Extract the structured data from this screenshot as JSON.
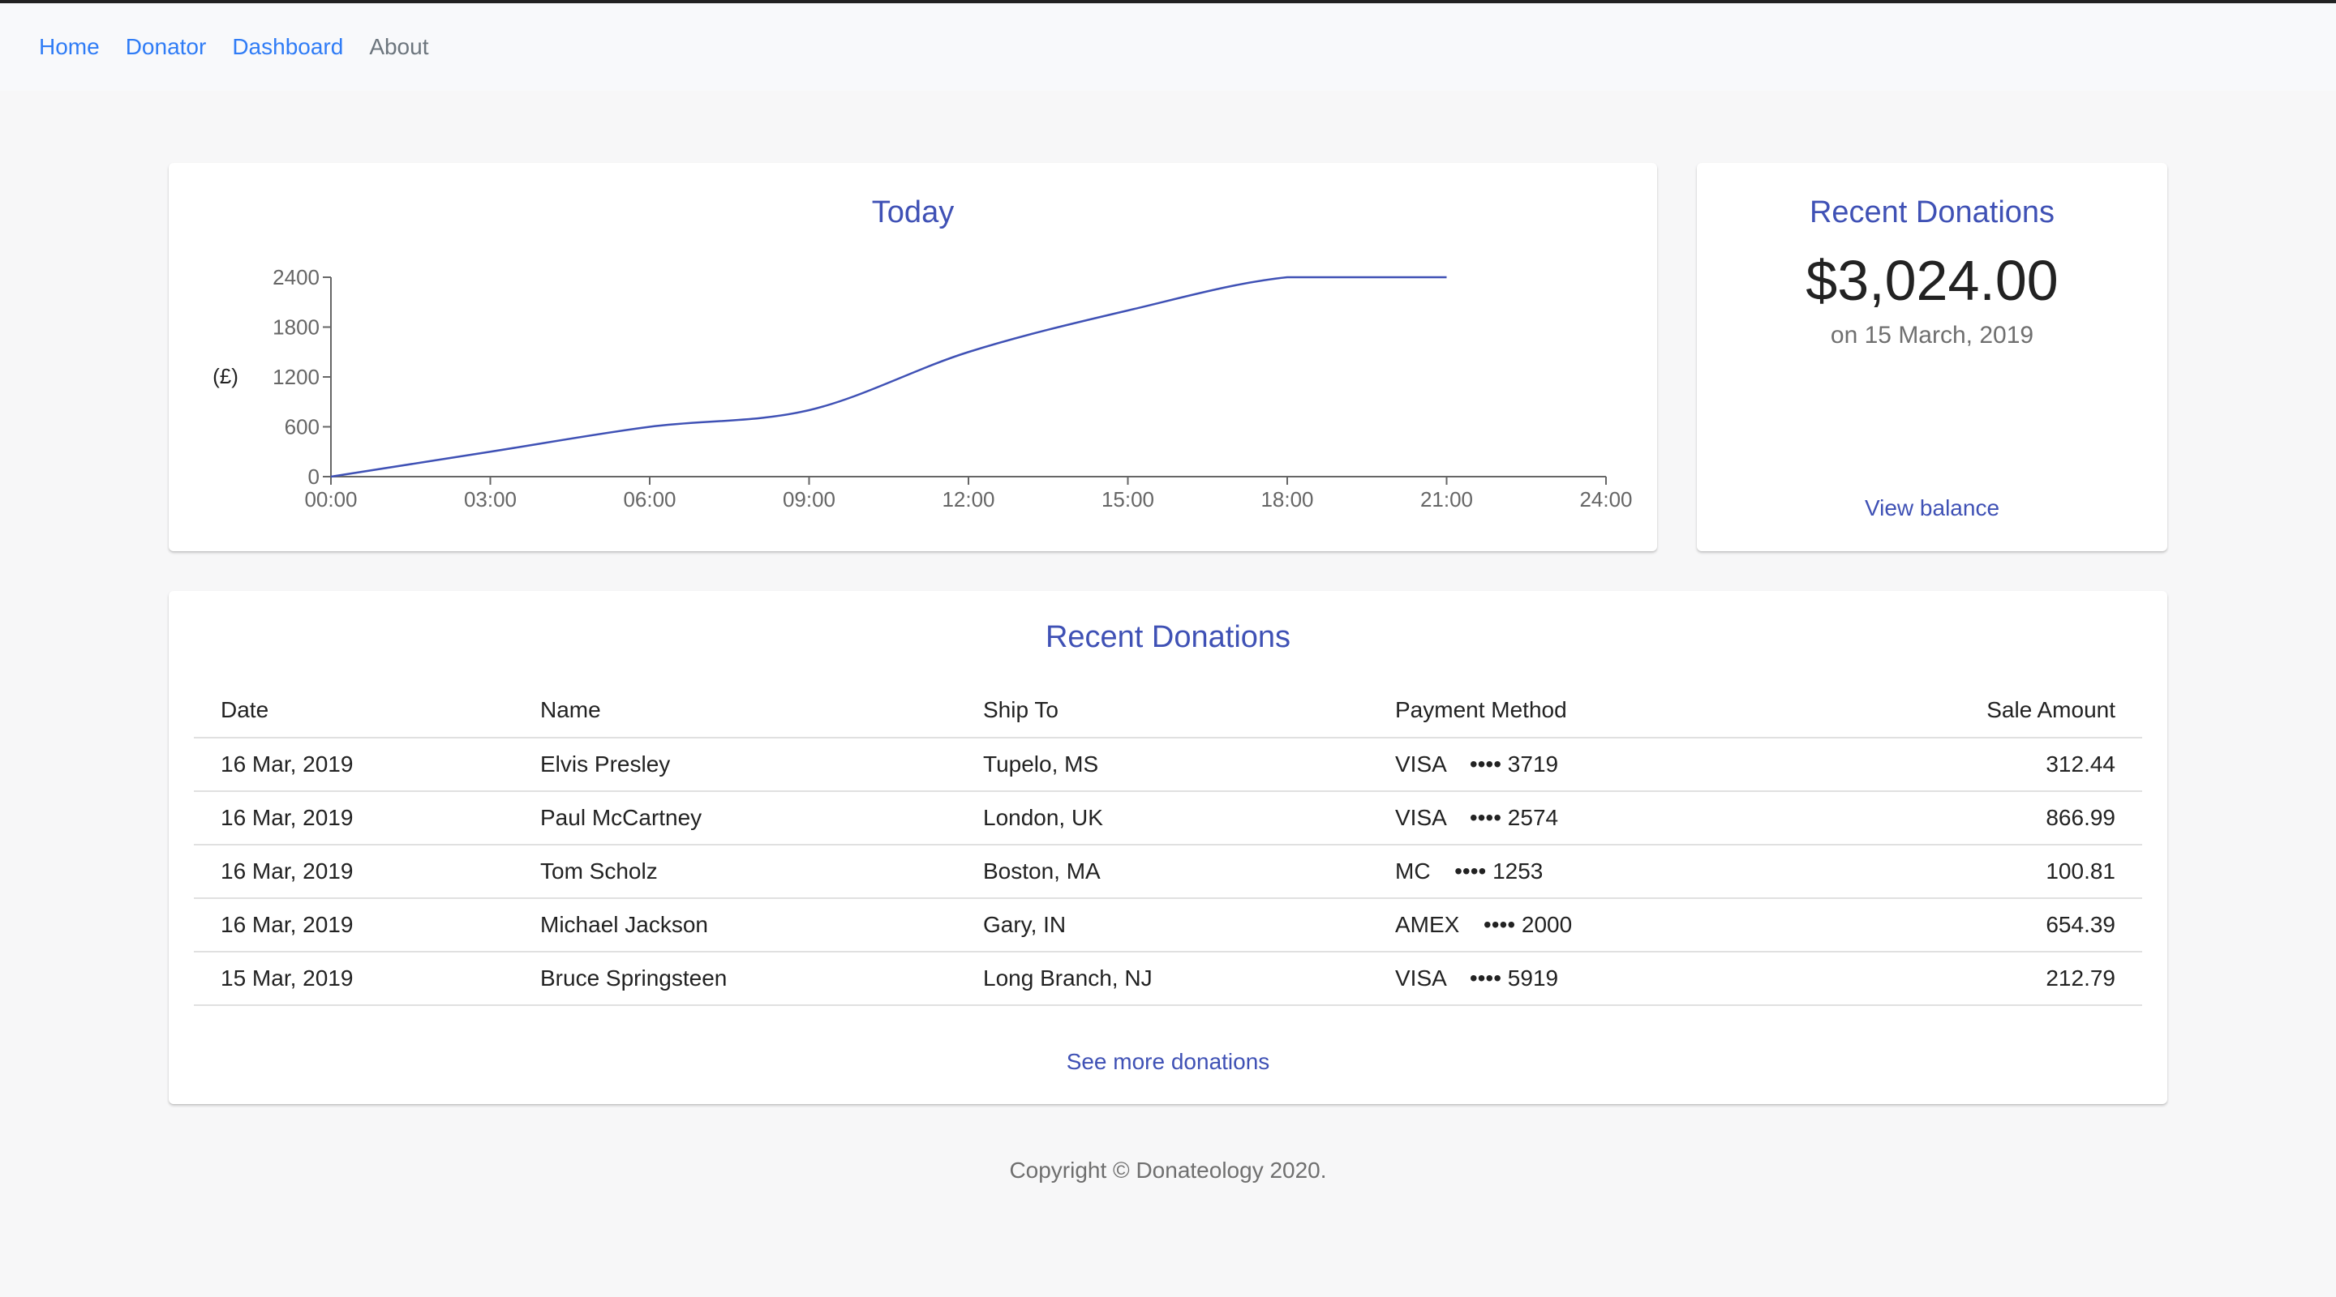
{
  "nav": {
    "items": [
      {
        "label": "Home"
      },
      {
        "label": "Donator"
      },
      {
        "label": "Dashboard"
      },
      {
        "label": "About"
      }
    ]
  },
  "chart_card": {
    "title": "Today"
  },
  "chart_data": {
    "type": "line",
    "title": "Today",
    "xlabel": "",
    "ylabel": "(£)",
    "x": [
      "00:00",
      "03:00",
      "06:00",
      "09:00",
      "12:00",
      "15:00",
      "18:00",
      "21:00"
    ],
    "values": [
      0,
      300,
      600,
      800,
      1500,
      2000,
      2400,
      2400
    ],
    "x_ticks": [
      "00:00",
      "03:00",
      "06:00",
      "09:00",
      "12:00",
      "15:00",
      "18:00",
      "21:00",
      "24:00"
    ],
    "y_ticks": [
      0,
      600,
      1200,
      1800,
      2400
    ],
    "ylim": [
      0,
      2400
    ],
    "line_color": "#3f51b5"
  },
  "balance": {
    "title": "Recent Donations",
    "amount": "$3,024.00",
    "date": "on 15 March, 2019",
    "link": "View balance"
  },
  "table": {
    "title": "Recent Donations",
    "headers": [
      "Date",
      "Name",
      "Ship To",
      "Payment Method",
      "Sale Amount"
    ],
    "rows": [
      [
        "16 Mar, 2019",
        "Elvis Presley",
        "Tupelo, MS",
        "VISA   •••• 3719",
        "312.44"
      ],
      [
        "16 Mar, 2019",
        "Paul McCartney",
        "London, UK",
        "VISA   •••• 2574",
        "866.99"
      ],
      [
        "16 Mar, 2019",
        "Tom Scholz",
        "Boston, MA",
        "MC   •••• 1253",
        "100.81"
      ],
      [
        "16 Mar, 2019",
        "Michael Jackson",
        "Gary, IN",
        "AMEX   •••• 2000",
        "654.39"
      ],
      [
        "15 Mar, 2019",
        "Bruce Springsteen",
        "Long Branch, NJ",
        "VISA   •••• 5919",
        "212.79"
      ]
    ],
    "more_link": "See more donations"
  },
  "footer": {
    "text": "Copyright © Donateology 2020."
  },
  "colors": {
    "accent": "#3f51b5",
    "nav_link": "#2f7cf6"
  }
}
